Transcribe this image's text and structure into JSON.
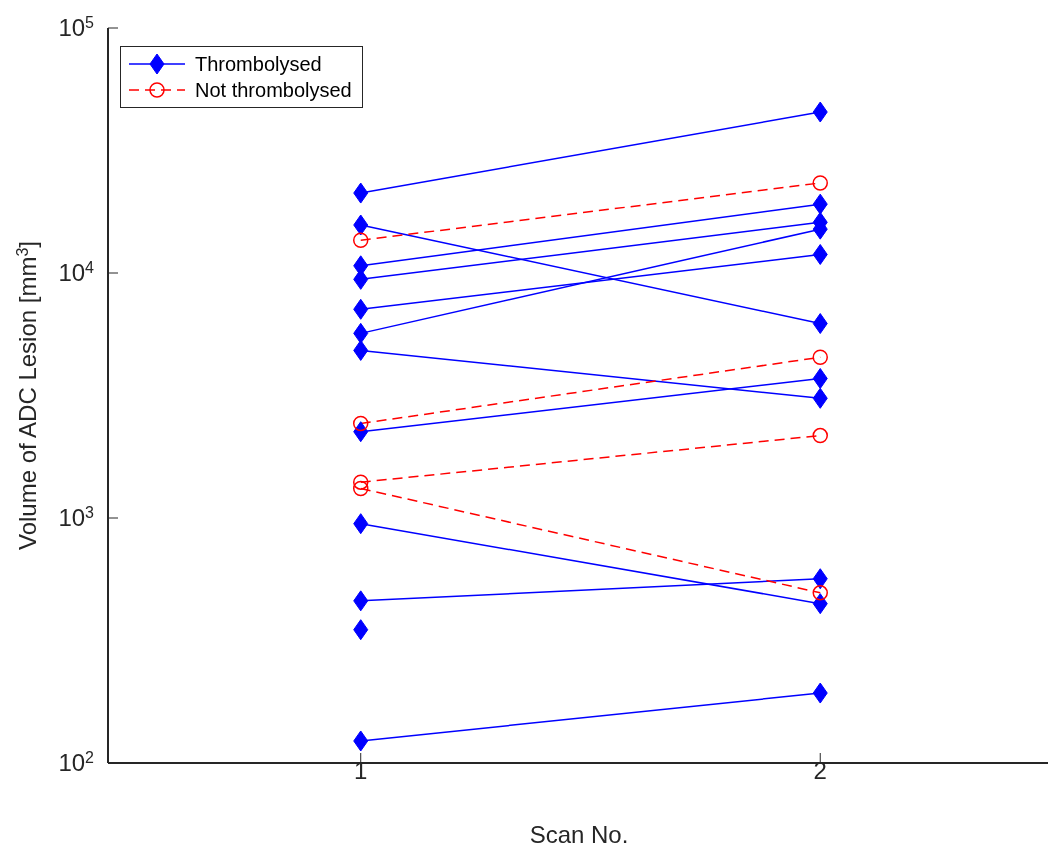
{
  "chart_data": {
    "type": "line",
    "xlabel": "Scan No.",
    "ylabel": "Volume of ADC Lesion [mm$^{3}$]",
    "log": "y",
    "xlim": [
      0.45,
      2.5
    ],
    "xticks": [
      1,
      2
    ],
    "ylim": [
      100,
      100000
    ],
    "yticks": [
      {
        "value": 100,
        "label": "10$^{2}$"
      },
      {
        "value": 1000,
        "label": "10$^{3}$"
      },
      {
        "value": 10000,
        "label": "10$^{4}$"
      },
      {
        "value": 100000,
        "label": "10$^{5}$"
      }
    ],
    "grid": false,
    "legend": "top left",
    "x": [
      1,
      2
    ],
    "series": [
      {
        "name": "Thrombolysed",
        "color": "#0000ff",
        "marker": "diamond",
        "line_style": "solid",
        "values": [
          21200,
          45400
        ]
      },
      {
        "color": "#0000ff",
        "marker": "diamond",
        "line_style": "solid",
        "values": [
          15700,
          6220
        ]
      },
      {
        "color": "#0000ff",
        "marker": "diamond",
        "line_style": "solid",
        "values": [
          10700,
          19100
        ]
      },
      {
        "color": "#0000ff",
        "marker": "diamond",
        "line_style": "solid",
        "values": [
          9420,
          16100
        ]
      },
      {
        "color": "#0000ff",
        "marker": "diamond",
        "line_style": "solid",
        "values": [
          7110,
          11900
        ]
      },
      {
        "color": "#0000ff",
        "marker": "diamond",
        "line_style": "solid",
        "values": [
          5670,
          15100
        ]
      },
      {
        "color": "#0000ff",
        "marker": "diamond",
        "line_style": "solid",
        "values": [
          4830,
          3080
        ]
      },
      {
        "color": "#0000ff",
        "marker": "diamond",
        "line_style": "solid",
        "values": [
          2250,
          3710
        ]
      },
      {
        "color": "#0000ff",
        "marker": "diamond",
        "line_style": "solid",
        "values": [
          948,
          447
        ]
      },
      {
        "color": "#0000ff",
        "marker": "diamond",
        "line_style": "solid",
        "values": [
          459,
          565
        ]
      },
      {
        "color": "#0000ff",
        "marker": "diamond",
        "line_style": "solid",
        "values": [
          350,
          null
        ]
      },
      {
        "color": "#0000ff",
        "marker": "diamond",
        "line_style": "solid",
        "values": [
          123,
          193
        ]
      },
      {
        "name": "Not thrombolysed",
        "color": "#ff0000",
        "marker": "circle",
        "line_style": "dashed",
        "values": [
          13600,
          23300
        ]
      },
      {
        "color": "#ff0000",
        "marker": "circle",
        "line_style": "dashed",
        "values": [
          2430,
          4530
        ]
      },
      {
        "color": "#ff0000",
        "marker": "circle",
        "line_style": "dashed",
        "values": [
          1400,
          2170
        ]
      },
      {
        "color": "#ff0000",
        "marker": "circle",
        "line_style": "dashed",
        "values": [
          1320,
          495
        ]
      }
    ]
  }
}
